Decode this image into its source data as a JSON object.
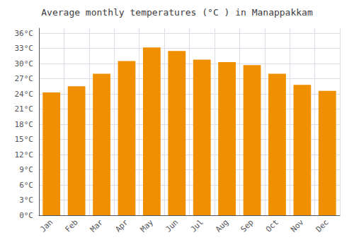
{
  "chart_data": {
    "type": "bar",
    "title": "Average monthly temperatures (°C ) in Manappakkam",
    "categories": [
      "Jan",
      "Feb",
      "Mar",
      "Apr",
      "May",
      "Jun",
      "Jul",
      "Aug",
      "Sep",
      "Oct",
      "Nov",
      "Dec"
    ],
    "values": [
      24.3,
      25.5,
      28.0,
      30.5,
      33.2,
      32.5,
      30.8,
      30.3,
      29.7,
      28.0,
      25.8,
      24.6
    ],
    "color": "#F09000",
    "ylim": [
      0,
      37
    ],
    "yticks": [
      {
        "value": 0,
        "label": "0°C"
      },
      {
        "value": 3,
        "label": "3°C"
      },
      {
        "value": 6,
        "label": "6°C"
      },
      {
        "value": 9,
        "label": "9°C"
      },
      {
        "value": 12,
        "label": "12°C"
      },
      {
        "value": 15,
        "label": "15°C"
      },
      {
        "value": 18,
        "label": "18°C"
      },
      {
        "value": 21,
        "label": "21°C"
      },
      {
        "value": 24,
        "label": "24°C"
      },
      {
        "value": 27,
        "label": "27°C"
      },
      {
        "value": 30,
        "label": "30°C"
      },
      {
        "value": 33,
        "label": "33°C"
      },
      {
        "value": 36,
        "label": "36°C"
      }
    ],
    "grid": true
  }
}
